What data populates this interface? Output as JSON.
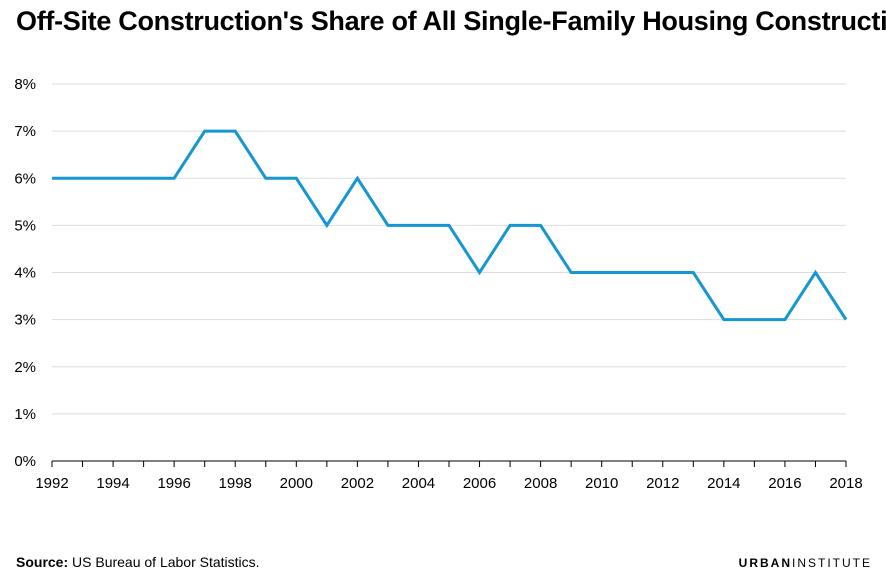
{
  "title": "Off-Site Construction's Share of All Single-Family Housing Construction",
  "source_label": "Source:",
  "source_text": "US Bureau of Labor Statistics.",
  "brand_part1": "URBAN",
  "brand_part2": "INSTITUTE",
  "chart_data": {
    "type": "line",
    "title": "Off-Site Construction's Share of All Single-Family Housing Construction",
    "xlabel": "",
    "ylabel": "",
    "x": [
      1992,
      1993,
      1994,
      1995,
      1996,
      1997,
      1998,
      1999,
      2000,
      2001,
      2002,
      2003,
      2004,
      2005,
      2006,
      2007,
      2008,
      2009,
      2010,
      2011,
      2012,
      2013,
      2014,
      2015,
      2016,
      2017,
      2018
    ],
    "series": [
      {
        "values": [
          6,
          6,
          6,
          6,
          6,
          7,
          7,
          6,
          6,
          5,
          6,
          5,
          5,
          5,
          4,
          5,
          5,
          4,
          4,
          4,
          4,
          4,
          3,
          3,
          3,
          4,
          3
        ]
      }
    ],
    "xticks": [
      "1992",
      "1994",
      "1996",
      "1998",
      "2000",
      "2002",
      "2004",
      "2006",
      "2008",
      "2010",
      "2012",
      "2014",
      "2016",
      "2018"
    ],
    "yticks": [
      "0%",
      "1%",
      "2%",
      "3%",
      "4%",
      "5%",
      "6%",
      "7%",
      "8%"
    ],
    "xlim": [
      1992,
      2018
    ],
    "ylim": [
      0,
      8
    ],
    "grid": true,
    "legend": "none",
    "line_color": "#1696d2",
    "grid_color": "#dedddd"
  }
}
